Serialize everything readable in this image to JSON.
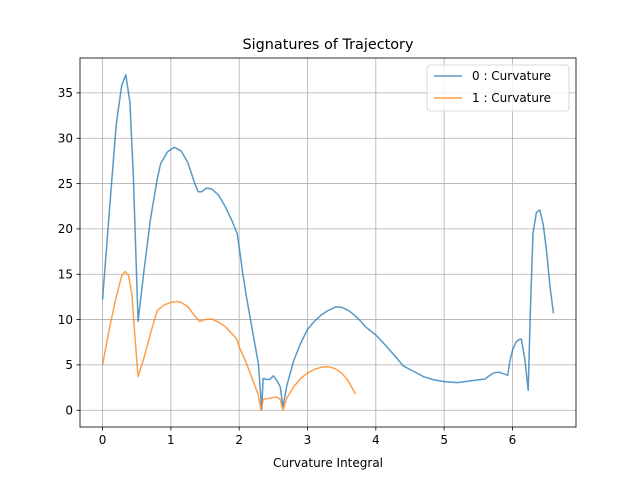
{
  "chart_data": {
    "type": "line",
    "title": "Signatures of Trajectory",
    "xlabel": "Curvature Integral",
    "ylabel": "",
    "xlim": [
      -0.33,
      6.93
    ],
    "ylim": [
      -1.85,
      38.85
    ],
    "xticks": [
      0,
      1,
      2,
      3,
      4,
      5,
      6
    ],
    "yticks": [
      0,
      5,
      10,
      15,
      20,
      25,
      30,
      35
    ],
    "grid": true,
    "legend_position": "top-right",
    "series": [
      {
        "name": "0 : Curvature",
        "color": "#1f77b4",
        "points": [
          [
            0.0,
            12.2
          ],
          [
            0.1,
            22.0
          ],
          [
            0.2,
            31.5
          ],
          [
            0.28,
            35.8
          ],
          [
            0.34,
            37.0
          ],
          [
            0.4,
            34.0
          ],
          [
            0.45,
            26.0
          ],
          [
            0.52,
            9.8
          ],
          [
            0.6,
            15.0
          ],
          [
            0.7,
            21.0
          ],
          [
            0.8,
            25.5
          ],
          [
            0.85,
            27.2
          ],
          [
            0.95,
            28.5
          ],
          [
            1.05,
            29.0
          ],
          [
            1.15,
            28.6
          ],
          [
            1.25,
            27.3
          ],
          [
            1.35,
            25.0
          ],
          [
            1.4,
            24.1
          ],
          [
            1.45,
            24.1
          ],
          [
            1.52,
            24.5
          ],
          [
            1.6,
            24.4
          ],
          [
            1.7,
            23.7
          ],
          [
            1.8,
            22.4
          ],
          [
            1.9,
            20.8
          ],
          [
            1.97,
            19.5
          ],
          [
            2.0,
            18.0
          ],
          [
            2.05,
            15.2
          ],
          [
            2.1,
            12.8
          ],
          [
            2.2,
            8.5
          ],
          [
            2.28,
            5.2
          ],
          [
            2.33,
            0.1
          ],
          [
            2.35,
            3.5
          ],
          [
            2.4,
            3.4
          ],
          [
            2.45,
            3.4
          ],
          [
            2.5,
            3.8
          ],
          [
            2.55,
            3.3
          ],
          [
            2.6,
            2.6
          ],
          [
            2.64,
            0.4
          ],
          [
            2.7,
            2.8
          ],
          [
            2.8,
            5.5
          ],
          [
            2.9,
            7.4
          ],
          [
            3.0,
            8.9
          ],
          [
            3.1,
            9.8
          ],
          [
            3.2,
            10.5
          ],
          [
            3.3,
            11.0
          ],
          [
            3.42,
            11.4
          ],
          [
            3.5,
            11.35
          ],
          [
            3.6,
            11.0
          ],
          [
            3.7,
            10.4
          ],
          [
            3.78,
            9.8
          ],
          [
            3.85,
            9.2
          ],
          [
            4.0,
            8.3
          ],
          [
            4.15,
            7.1
          ],
          [
            4.3,
            5.8
          ],
          [
            4.4,
            4.9
          ],
          [
            4.55,
            4.3
          ],
          [
            4.7,
            3.7
          ],
          [
            4.85,
            3.35
          ],
          [
            5.0,
            3.15
          ],
          [
            5.1,
            3.1
          ],
          [
            5.2,
            3.05
          ],
          [
            5.3,
            3.15
          ],
          [
            5.4,
            3.25
          ],
          [
            5.5,
            3.35
          ],
          [
            5.6,
            3.45
          ],
          [
            5.65,
            3.75
          ],
          [
            5.72,
            4.1
          ],
          [
            5.8,
            4.2
          ],
          [
            5.88,
            4.0
          ],
          [
            5.93,
            3.85
          ],
          [
            5.96,
            5.3
          ],
          [
            6.0,
            6.6
          ],
          [
            6.05,
            7.5
          ],
          [
            6.1,
            7.8
          ],
          [
            6.13,
            7.85
          ],
          [
            6.18,
            5.7
          ],
          [
            6.23,
            2.2
          ],
          [
            6.26,
            10.5
          ],
          [
            6.3,
            19.5
          ],
          [
            6.35,
            21.8
          ],
          [
            6.4,
            22.1
          ],
          [
            6.45,
            20.5
          ],
          [
            6.5,
            17.5
          ],
          [
            6.55,
            13.6
          ],
          [
            6.6,
            10.7
          ]
        ]
      },
      {
        "name": "1 : Curvature",
        "color": "#ff7f0e",
        "points": [
          [
            0.0,
            5.0
          ],
          [
            0.1,
            9.0
          ],
          [
            0.2,
            12.5
          ],
          [
            0.28,
            14.8
          ],
          [
            0.33,
            15.3
          ],
          [
            0.38,
            14.9
          ],
          [
            0.43,
            12.8
          ],
          [
            0.47,
            8.5
          ],
          [
            0.52,
            3.7
          ],
          [
            0.6,
            5.6
          ],
          [
            0.7,
            8.4
          ],
          [
            0.8,
            11.0
          ],
          [
            0.9,
            11.6
          ],
          [
            1.0,
            11.9
          ],
          [
            1.08,
            12.0
          ],
          [
            1.15,
            11.9
          ],
          [
            1.25,
            11.4
          ],
          [
            1.35,
            10.4
          ],
          [
            1.42,
            9.8
          ],
          [
            1.5,
            10.0
          ],
          [
            1.6,
            10.05
          ],
          [
            1.7,
            9.7
          ],
          [
            1.8,
            9.2
          ],
          [
            1.9,
            8.4
          ],
          [
            1.97,
            7.8
          ],
          [
            2.0,
            7.0
          ],
          [
            2.1,
            5.3
          ],
          [
            2.2,
            3.3
          ],
          [
            2.28,
            1.7
          ],
          [
            2.32,
            0.0
          ],
          [
            2.35,
            1.2
          ],
          [
            2.42,
            1.3
          ],
          [
            2.5,
            1.4
          ],
          [
            2.55,
            1.45
          ],
          [
            2.6,
            1.2
          ],
          [
            2.64,
            0.0
          ],
          [
            2.7,
            1.4
          ],
          [
            2.8,
            2.6
          ],
          [
            2.9,
            3.5
          ],
          [
            3.0,
            4.1
          ],
          [
            3.1,
            4.5
          ],
          [
            3.2,
            4.75
          ],
          [
            3.3,
            4.8
          ],
          [
            3.4,
            4.6
          ],
          [
            3.5,
            4.1
          ],
          [
            3.6,
            3.2
          ],
          [
            3.7,
            1.8
          ]
        ]
      }
    ]
  }
}
